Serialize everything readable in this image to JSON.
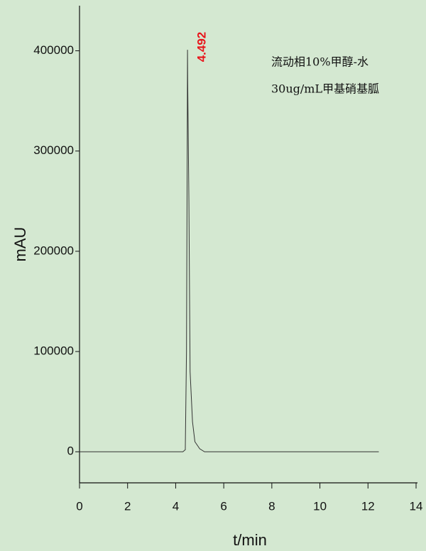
{
  "chart_data": {
    "type": "line",
    "xlabel": "t/min",
    "ylabel": "mAU",
    "x": [
      0,
      4.3,
      4.4,
      4.45,
      4.48,
      4.492,
      4.5,
      4.55,
      4.6,
      4.7,
      4.8,
      5.0,
      5.2,
      12.45
    ],
    "values": [
      0,
      0,
      2000,
      100000,
      300000,
      401000,
      370000,
      250000,
      80000,
      30000,
      10000,
      3000,
      0,
      0
    ],
    "color": "#333333",
    "xlim": [
      0,
      14
    ],
    "xticks": [
      0,
      2,
      4,
      6,
      8,
      10,
      12,
      14
    ],
    "ylim": [
      -31000,
      445000
    ],
    "yticks": [
      0,
      100000,
      200000,
      300000,
      400000
    ],
    "peak_label": {
      "text": "4.492",
      "color": "#e8141a"
    },
    "notes": [
      "流动相10%甲醇-水",
      "30ug/mL甲基硝基胍"
    ]
  }
}
